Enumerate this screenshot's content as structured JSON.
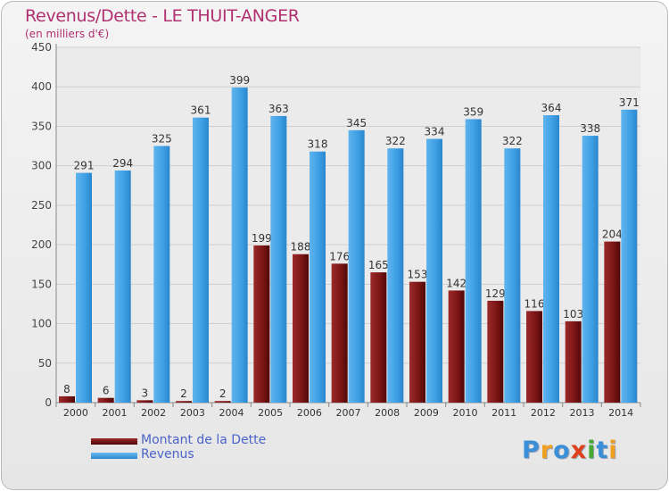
{
  "chart_data": {
    "type": "bar",
    "title": "Revenus/Dette - LE THUIT-ANGER",
    "subtitle": "(en milliers d'€)",
    "categories": [
      "2000",
      "2001",
      "2002",
      "2003",
      "2004",
      "2005",
      "2006",
      "2007",
      "2008",
      "2009",
      "2010",
      "2011",
      "2012",
      "2013",
      "2014"
    ],
    "series": [
      {
        "name": "Montant de la Dette",
        "color": "#7a1414",
        "values": [
          8,
          6,
          3,
          2,
          2,
          199,
          188,
          176,
          165,
          153,
          142,
          129,
          116,
          103,
          204
        ],
        "labels": [
          "8",
          "6",
          "3",
          "2",
          "2",
          "199",
          "188",
          "176",
          "165",
          "153",
          "142",
          "129",
          "116",
          "103",
          "204"
        ]
      },
      {
        "name": "Revenus",
        "color": "#3d9ee4",
        "values": [
          291,
          294,
          325,
          361,
          399,
          363,
          318,
          345,
          322,
          334,
          359,
          322,
          364,
          338,
          371
        ],
        "labels": [
          "291",
          "294",
          "325",
          "361",
          "399",
          "363",
          "318",
          "345",
          "322",
          "334",
          "359",
          "322",
          "364",
          "338",
          "371"
        ]
      }
    ],
    "ylim": [
      0,
      450
    ],
    "yticks": [
      "0",
      "50",
      "100",
      "150",
      "200",
      "250",
      "300",
      "350",
      "400",
      "450"
    ],
    "grid": true
  },
  "legend": {
    "items": [
      "Montant de la Dette",
      "Revenus"
    ]
  },
  "logo": {
    "letters": [
      "P",
      "r",
      "o",
      "x",
      "i",
      "t",
      "i"
    ],
    "colors": [
      "#3b8fd8",
      "#f0a020",
      "#3b8fd8",
      "#e0401a",
      "#44aa33",
      "#3b8fd8",
      "#f0a020"
    ]
  }
}
